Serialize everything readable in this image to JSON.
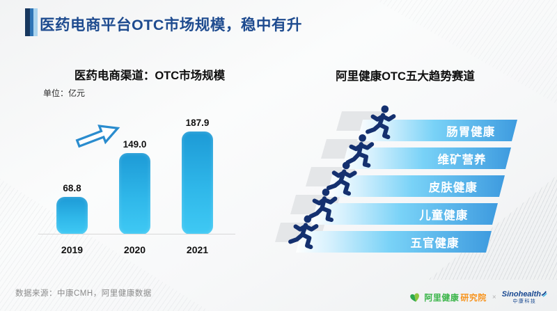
{
  "slide": {
    "title": "医药电商平台OTC市场规模，稳中有升"
  },
  "left_panel": {
    "title": "医药电商渠道：OTC市场规模",
    "unit_label": "单位：亿元"
  },
  "chart_data": {
    "type": "bar",
    "title": "医药电商渠道：OTC市场规模",
    "unit": "亿元",
    "categories": [
      "2019",
      "2020",
      "2021"
    ],
    "values": [
      68.8,
      149.0,
      187.9
    ],
    "value_labels": [
      "68.8",
      "149.0",
      "187.9"
    ],
    "ylim": [
      0,
      200
    ],
    "grid": false,
    "annotations": [
      "growth-arrow-up-right"
    ],
    "bar_color_top": "#1d9ad6",
    "bar_color_bottom": "#3fc9f4"
  },
  "right_panel": {
    "title": "阿里健康OTC五大趋势赛道",
    "tracks": [
      "肠胃健康",
      "维矿营养",
      "皮肤健康",
      "儿童健康",
      "五官健康"
    ]
  },
  "footer": {
    "source": "数据来源：中康CMH，阿里健康数据",
    "alihealth_logo": {
      "name": "阿里健康",
      "suffix": "研究院"
    },
    "separator": "×",
    "sinohealth_logo": {
      "brand": "Sinohealth",
      "sub": "中康科技"
    }
  },
  "colors": {
    "title_text": "#1e4b8f",
    "accent_dark": "#17375e",
    "accent_mid": "#2e75b6",
    "accent_light": "#a9d3ee",
    "banner_blue": "#3e9bdf",
    "runner_navy": "#14306f",
    "alihealth_green": "#3bb54a",
    "alihealth_orange": "#f7941e",
    "sinohealth_blue": "#16468f"
  }
}
